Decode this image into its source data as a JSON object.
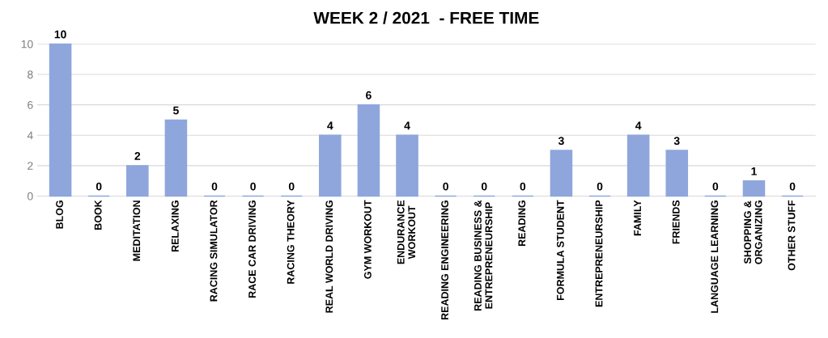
{
  "chart_data": {
    "type": "bar",
    "title": "WEEK 2 / 2021  - FREE TIME",
    "categories": [
      "BLOG",
      "BOOK",
      "MEDITATION",
      "RELAXING",
      "RACING SIMULATOR",
      "RACE CAR DRIVING",
      "RACING THEORY",
      "REAL WORLD DRIVING",
      "GYM WORKOUT",
      "ENDURANCE\nWORKOUT",
      "READING ENGINEERING",
      "READING BUSINESS &\nENTREPRENEURSHIP",
      "READING",
      "FORMULA STUDENT",
      "ENTREPRENEURSHIP",
      "FAMILY",
      "FRIENDS",
      "LANGUAGE LEARNING",
      "SHOPPING &\nORGANIZING",
      "OTHER STUFF"
    ],
    "values": [
      10,
      0,
      2,
      5,
      0,
      0,
      0,
      4,
      6,
      4,
      0,
      0,
      0,
      3,
      0,
      4,
      3,
      0,
      1,
      0
    ],
    "color": "#8fa6dc",
    "ylim": [
      0,
      10
    ],
    "yticks": [
      0,
      2,
      4,
      6,
      8,
      10
    ],
    "grid": "y",
    "data_labels": true
  }
}
